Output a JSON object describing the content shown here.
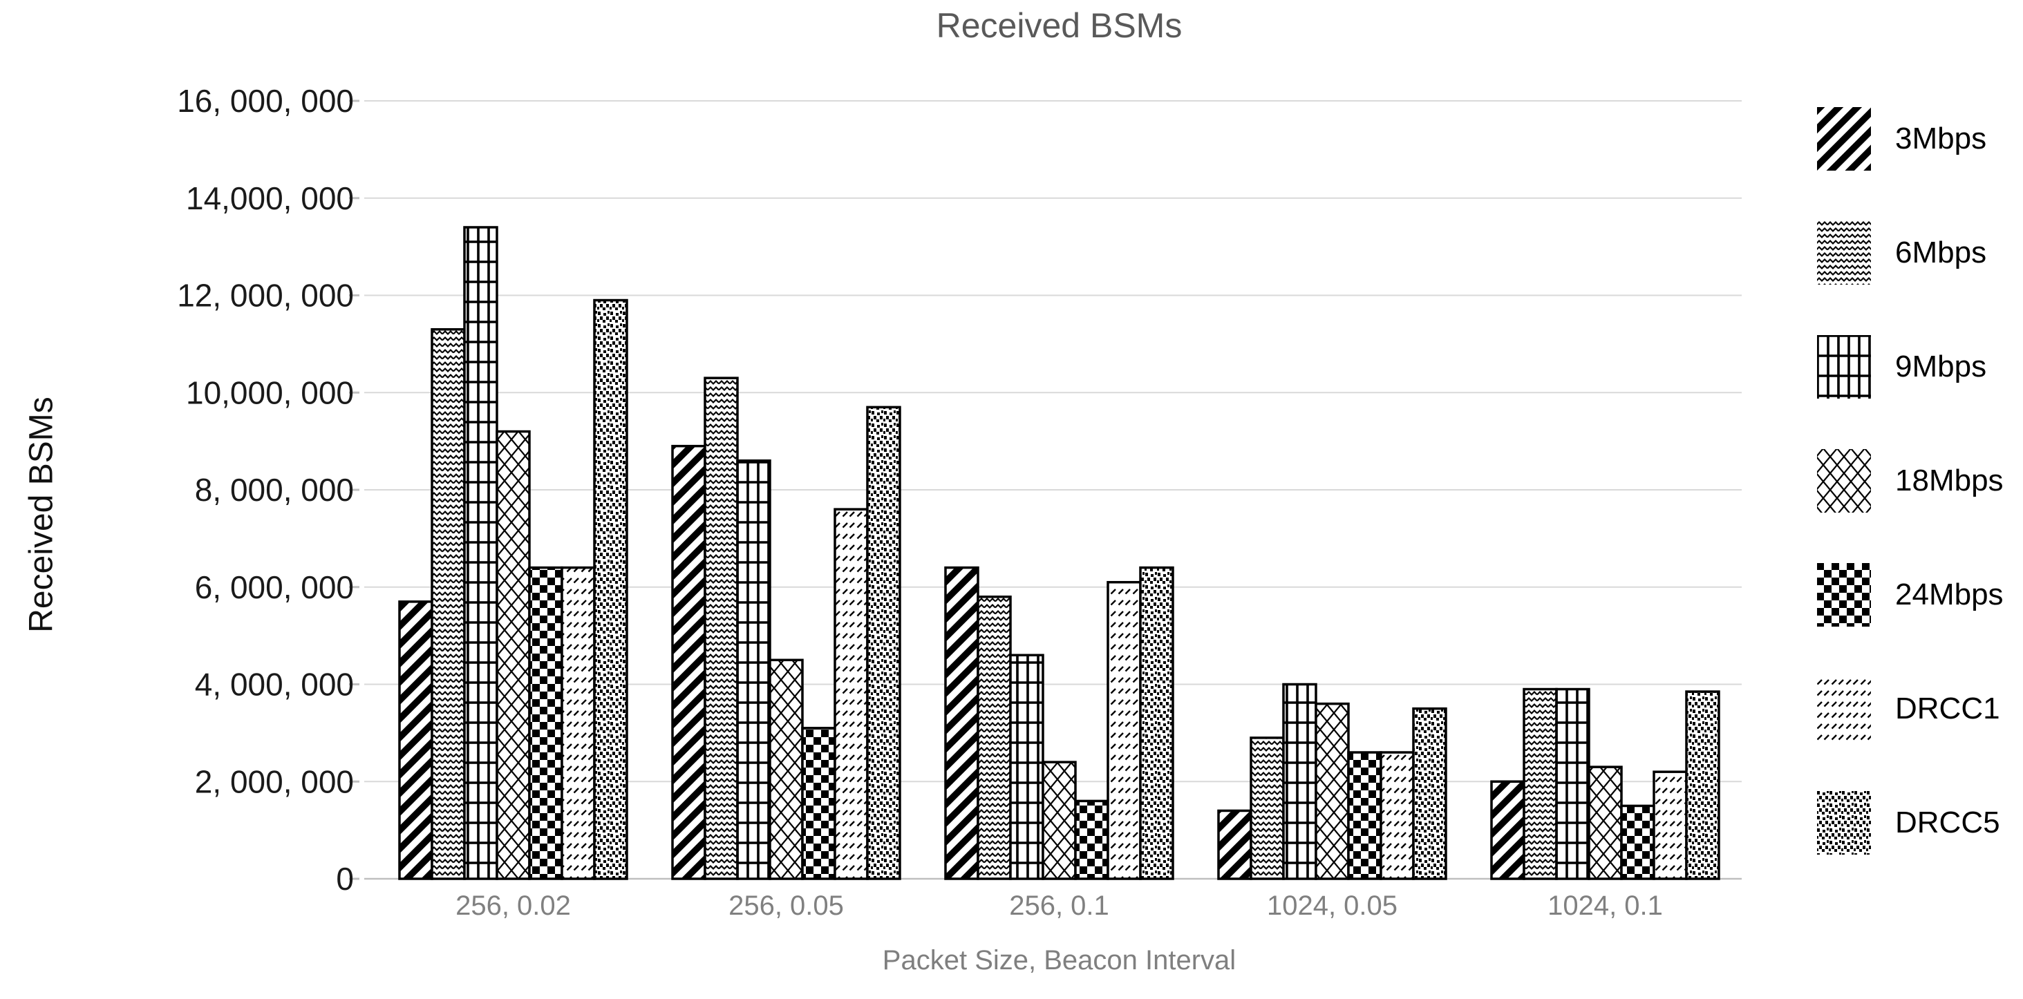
{
  "title": "Received BSMs",
  "y_axis": {
    "title": "Received BSMs",
    "tick_labels": [
      "16, 000, 000",
      "14,000, 000",
      "12, 000, 000",
      "10,000, 000",
      "8, 000, 000",
      "6, 000, 000",
      "4, 000, 000",
      "2, 000, 000",
      "0"
    ]
  },
  "x_axis": {
    "title": "Packet Size, Beacon Interval",
    "tick_labels": [
      "256, 0.02",
      "256, 0.05",
      "256, 0.1",
      "1024, 0.05",
      "1024, 0.1"
    ]
  },
  "legend": [
    {
      "label": "3Mbps",
      "icon": "diagonal-stripes-swatch"
    },
    {
      "label": "6Mbps",
      "icon": "wave-pattern-swatch"
    },
    {
      "label": "9Mbps",
      "icon": "grid-pattern-swatch"
    },
    {
      "label": "18Mbps",
      "icon": "diamond-lattice-swatch"
    },
    {
      "label": "24Mbps",
      "icon": "checkerboard-swatch"
    },
    {
      "label": "DRCC1",
      "icon": "diagonal-dashes-swatch"
    },
    {
      "label": "DRCC5",
      "icon": "scattered-dots-swatch"
    }
  ],
  "colors": {
    "title_text": "#595959",
    "x_tick_text": "#808080",
    "y_tick_text": "#1a1a1a",
    "gridline": "#d9d9d9",
    "baseline": "#bfbfbf",
    "bar_stroke": "#000000"
  },
  "chart_data": {
    "type": "bar",
    "title": "Received BSMs",
    "xlabel": "Packet Size, Beacon Interval",
    "ylabel": "Received BSMs",
    "categories": [
      "256, 0.02",
      "256, 0.05",
      "256, 0.1",
      "1024, 0.05",
      "1024, 0.1"
    ],
    "series": [
      {
        "name": "3Mbps",
        "values": [
          5700000,
          8900000,
          6400000,
          1400000,
          2000000
        ]
      },
      {
        "name": "6Mbps",
        "values": [
          11300000,
          10300000,
          5800000,
          2900000,
          3900000
        ]
      },
      {
        "name": "9Mbps",
        "values": [
          13400000,
          8600000,
          4600000,
          4000000,
          3900000
        ]
      },
      {
        "name": "18Mbps",
        "values": [
          9200000,
          4500000,
          2400000,
          3600000,
          2300000
        ]
      },
      {
        "name": "24Mbps",
        "values": [
          6400000,
          3100000,
          1600000,
          2600000,
          1500000
        ]
      },
      {
        "name": "DRCC1",
        "values": [
          6400000,
          7600000,
          6100000,
          2600000,
          2200000
        ]
      },
      {
        "name": "DRCC5",
        "values": [
          11900000,
          9700000,
          6400000,
          3500000,
          3850000
        ]
      }
    ],
    "ylim": [
      0,
      16000000
    ],
    "y_tick_step": 2000000,
    "grid": true,
    "legend_position": "right"
  }
}
